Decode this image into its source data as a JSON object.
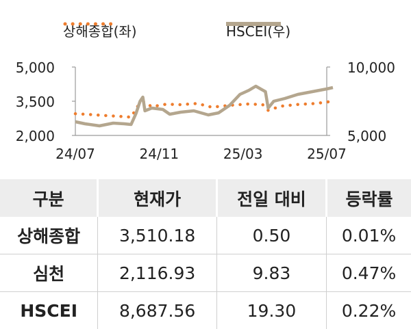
{
  "legend": [
    {
      "label": "상해종합(좌)",
      "style": "dotted",
      "color": "#EE7D2E"
    },
    {
      "label": "HSCEI(우)",
      "style": "solid",
      "color": "#B4A68E"
    }
  ],
  "chart_data": {
    "type": "line",
    "x_tick_labels": [
      "24/07",
      "24/11",
      "25/03",
      "25/07"
    ],
    "x_range": [
      "2024-07",
      "2025-07"
    ],
    "y_left": {
      "ticks": [
        "5,000",
        "3,500",
        "2,000"
      ],
      "range": [
        2000,
        5000
      ]
    },
    "y_right": {
      "ticks": [
        "10,000",
        "5,000"
      ],
      "range": [
        5000,
        10000
      ]
    },
    "grid": false,
    "legend_position": "top",
    "series": [
      {
        "name": "상해종합(좌)",
        "axis": "left",
        "color": "#EE7D2E",
        "style": "dotted",
        "points": [
          {
            "x": "2024-07-01",
            "y": 2950
          },
          {
            "x": "2024-07-20",
            "y": 2920
          },
          {
            "x": "2024-08-10",
            "y": 2880
          },
          {
            "x": "2024-09-01",
            "y": 2840
          },
          {
            "x": "2024-09-20",
            "y": 2800
          },
          {
            "x": "2024-09-30",
            "y": 3300
          },
          {
            "x": "2024-10-08",
            "y": 3480
          },
          {
            "x": "2024-10-20",
            "y": 3260
          },
          {
            "x": "2024-11-10",
            "y": 3370
          },
          {
            "x": "2024-12-01",
            "y": 3350
          },
          {
            "x": "2024-12-25",
            "y": 3400
          },
          {
            "x": "2025-01-15",
            "y": 3240
          },
          {
            "x": "2025-02-10",
            "y": 3320
          },
          {
            "x": "2025-03-10",
            "y": 3380
          },
          {
            "x": "2025-03-30",
            "y": 3350
          },
          {
            "x": "2025-04-07",
            "y": 3100
          },
          {
            "x": "2025-04-25",
            "y": 3280
          },
          {
            "x": "2025-05-20",
            "y": 3360
          },
          {
            "x": "2025-06-15",
            "y": 3400
          },
          {
            "x": "2025-07-10",
            "y": 3500
          }
        ]
      },
      {
        "name": "HSCEI(우)",
        "axis": "right",
        "color": "#B4A68E",
        "style": "solid",
        "points": [
          {
            "x": "2024-07-01",
            "y": 6000
          },
          {
            "x": "2024-07-15",
            "y": 5850
          },
          {
            "x": "2024-08-05",
            "y": 5700
          },
          {
            "x": "2024-08-25",
            "y": 5900
          },
          {
            "x": "2024-09-10",
            "y": 5850
          },
          {
            "x": "2024-09-20",
            "y": 5800
          },
          {
            "x": "2024-09-27",
            "y": 6600
          },
          {
            "x": "2024-10-03",
            "y": 7500
          },
          {
            "x": "2024-10-07",
            "y": 7800
          },
          {
            "x": "2024-10-10",
            "y": 6800
          },
          {
            "x": "2024-10-20",
            "y": 7000
          },
          {
            "x": "2024-11-05",
            "y": 6900
          },
          {
            "x": "2024-11-15",
            "y": 6550
          },
          {
            "x": "2024-12-01",
            "y": 6700
          },
          {
            "x": "2024-12-20",
            "y": 6800
          },
          {
            "x": "2025-01-10",
            "y": 6500
          },
          {
            "x": "2025-01-25",
            "y": 6650
          },
          {
            "x": "2025-02-10",
            "y": 7200
          },
          {
            "x": "2025-02-25",
            "y": 8000
          },
          {
            "x": "2025-03-10",
            "y": 8300
          },
          {
            "x": "2025-03-20",
            "y": 8600
          },
          {
            "x": "2025-04-03",
            "y": 8200
          },
          {
            "x": "2025-04-07",
            "y": 7000
          },
          {
            "x": "2025-04-15",
            "y": 7500
          },
          {
            "x": "2025-05-01",
            "y": 7700
          },
          {
            "x": "2025-05-20",
            "y": 8000
          },
          {
            "x": "2025-06-10",
            "y": 8200
          },
          {
            "x": "2025-07-01",
            "y": 8400
          },
          {
            "x": "2025-07-10",
            "y": 8500
          }
        ]
      }
    ]
  },
  "table": {
    "headers": [
      "구분",
      "현재가",
      "전일 대비",
      "등락률"
    ],
    "rows": [
      [
        "상해종합",
        "3,510.18",
        "0.50",
        "0.01%"
      ],
      [
        "심천",
        "2,116.93",
        "9.83",
        "0.47%"
      ],
      [
        "HSCEI",
        "8,687.56",
        "19.30",
        "0.22%"
      ]
    ]
  }
}
